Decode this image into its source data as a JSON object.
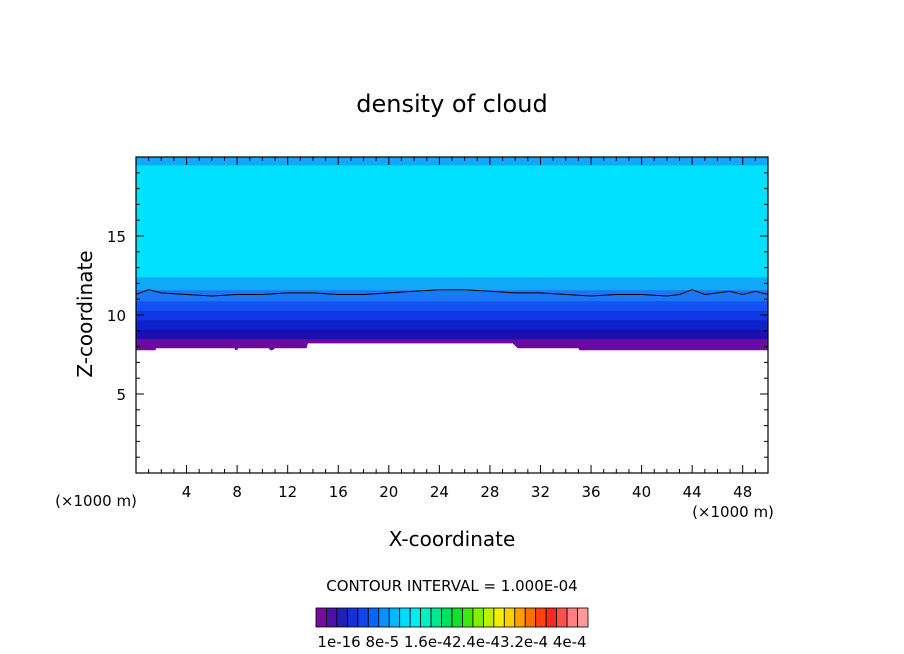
{
  "chart_data": {
    "type": "heatmap",
    "title": "density of cloud",
    "xlabel": "X-coordinate",
    "ylabel": "Z-coordinate",
    "x_unit": "(×1000 m)",
    "x_unit_right": "(×1000 m)",
    "xlim": [
      0,
      50
    ],
    "ylim": [
      0,
      20
    ],
    "xticks": [
      4,
      8,
      12,
      16,
      20,
      24,
      28,
      32,
      36,
      40,
      44,
      48
    ],
    "yticks": [
      5,
      10,
      15
    ],
    "contour_interval_label": "CONTOUR INTERVAL = 1.000E-04",
    "colorbar_labels": [
      "1e-16",
      "8e-5",
      "1.6e-4",
      "2.4e-4",
      "3.2e-4",
      "4e-4"
    ],
    "colorbar_label_text": "1e-16 8e-5 1.6e-42.4e-43.2e-4 4e-4",
    "colorbar_colors": [
      "#7a0a9e",
      "#4a10a8",
      "#2020b8",
      "#1630d8",
      "#1046f0",
      "#0a64ff",
      "#0a90ff",
      "#00b8ff",
      "#00dcff",
      "#00ecf0",
      "#00f0c0",
      "#00e890",
      "#00e060",
      "#10e030",
      "#40e810",
      "#80f000",
      "#c0f000",
      "#f0f000",
      "#ffd000",
      "#ffa000",
      "#ff7000",
      "#ff4010",
      "#f82820",
      "#ff5050",
      "#ff8080",
      "#ff9898"
    ],
    "layers": [
      {
        "z0": 7.8,
        "z1": 8.5,
        "color": "#6a0aa0"
      },
      {
        "z0": 8.5,
        "z1": 9.1,
        "color": "#1a10b0"
      },
      {
        "z0": 9.1,
        "z1": 9.7,
        "color": "#0e22cc"
      },
      {
        "z0": 9.7,
        "z1": 10.3,
        "color": "#1038e6"
      },
      {
        "z0": 10.3,
        "z1": 10.9,
        "color": "#1452f5"
      },
      {
        "z0": 10.9,
        "z1": 11.6,
        "color": "#1a78f5"
      },
      {
        "z0": 11.6,
        "z1": 12.4,
        "color": "#10a8f8"
      },
      {
        "z0": 12.4,
        "z1": 19.5,
        "color": "#00e0ff"
      },
      {
        "z0": 19.5,
        "z1": 20.0,
        "color": "#10a8f8"
      }
    ],
    "cloud_base": [
      [
        0,
        7.7
      ],
      [
        1.5,
        7.7
      ],
      [
        1.6,
        7.9
      ],
      [
        7.8,
        7.9
      ],
      [
        7.9,
        7.7
      ],
      [
        8.1,
        7.9
      ],
      [
        10.5,
        7.9
      ],
      [
        10.7,
        7.7
      ],
      [
        11.0,
        7.9
      ],
      [
        13.5,
        7.9
      ],
      [
        13.6,
        8.2
      ],
      [
        29.8,
        8.2
      ],
      [
        30.2,
        7.9
      ],
      [
        35.0,
        7.9
      ],
      [
        35.2,
        7.6
      ],
      [
        50,
        7.6
      ]
    ],
    "contour_line": [
      [
        0,
        11.3
      ],
      [
        1,
        11.6
      ],
      [
        2,
        11.4
      ],
      [
        4,
        11.3
      ],
      [
        6,
        11.2
      ],
      [
        8,
        11.3
      ],
      [
        10,
        11.3
      ],
      [
        12,
        11.4
      ],
      [
        14,
        11.4
      ],
      [
        16,
        11.3
      ],
      [
        18,
        11.3
      ],
      [
        20,
        11.4
      ],
      [
        22,
        11.5
      ],
      [
        24,
        11.6
      ],
      [
        26,
        11.6
      ],
      [
        28,
        11.5
      ],
      [
        30,
        11.4
      ],
      [
        32,
        11.4
      ],
      [
        34,
        11.3
      ],
      [
        36,
        11.2
      ],
      [
        38,
        11.3
      ],
      [
        40,
        11.3
      ],
      [
        42,
        11.2
      ],
      [
        43,
        11.3
      ],
      [
        44,
        11.6
      ],
      [
        45,
        11.3
      ],
      [
        46,
        11.4
      ],
      [
        47,
        11.5
      ],
      [
        48,
        11.3
      ],
      [
        49,
        11.5
      ],
      [
        50,
        11.3
      ]
    ]
  }
}
